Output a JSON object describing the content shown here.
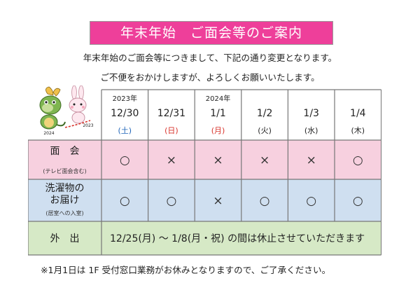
{
  "title": "年末年始　ご面会等のご案内",
  "intro": {
    "line1": "年末年始のご面会等につきまして、下記の通り変更となります。",
    "line2": "ご不便をおかけしますが、よろしくお願いいたします。"
  },
  "mascot": {
    "year_left": "2024",
    "year_right": "2023"
  },
  "colors": {
    "pink_row": "#f7d0df",
    "blue_row": "#cfdff0",
    "green_row": "#d6e9c6",
    "red": "#d8332b",
    "blue": "#1f64b8",
    "title_bg": "#ee3f9a"
  },
  "columns": [
    {
      "year": "2023年",
      "date": "12/30",
      "day": "(土)",
      "color": "blue"
    },
    {
      "year": "",
      "date": "12/31",
      "day": "(日)",
      "color": "red"
    },
    {
      "year": "2024年",
      "date": "1/1",
      "day": "(月)",
      "color": "red"
    },
    {
      "year": "",
      "date": "1/2",
      "day": "(火)",
      "color": "black"
    },
    {
      "year": "",
      "date": "1/3",
      "day": "(水)",
      "color": "black"
    },
    {
      "year": "",
      "date": "1/4",
      "day": "(木)",
      "color": "black"
    }
  ],
  "rows": [
    {
      "label": [
        "面　会"
      ],
      "sublabel": "(テレビ面会含む)",
      "marks": [
        "○",
        "×",
        "×",
        "×",
        "×",
        "○"
      ]
    },
    {
      "label": [
        "洗濯物の",
        "お届け"
      ],
      "sublabel": "(居室への入室)",
      "marks": [
        "○",
        "○",
        "×",
        "○",
        "○",
        "○"
      ]
    }
  ],
  "outing": {
    "label": "外　出",
    "text": "12/25(月) ～ 1/8(月・祝) の間は休止させていただきます"
  },
  "note": "※1月1日は 1F 受付窓口業務がお休みとなりますので、ご了承ください。"
}
